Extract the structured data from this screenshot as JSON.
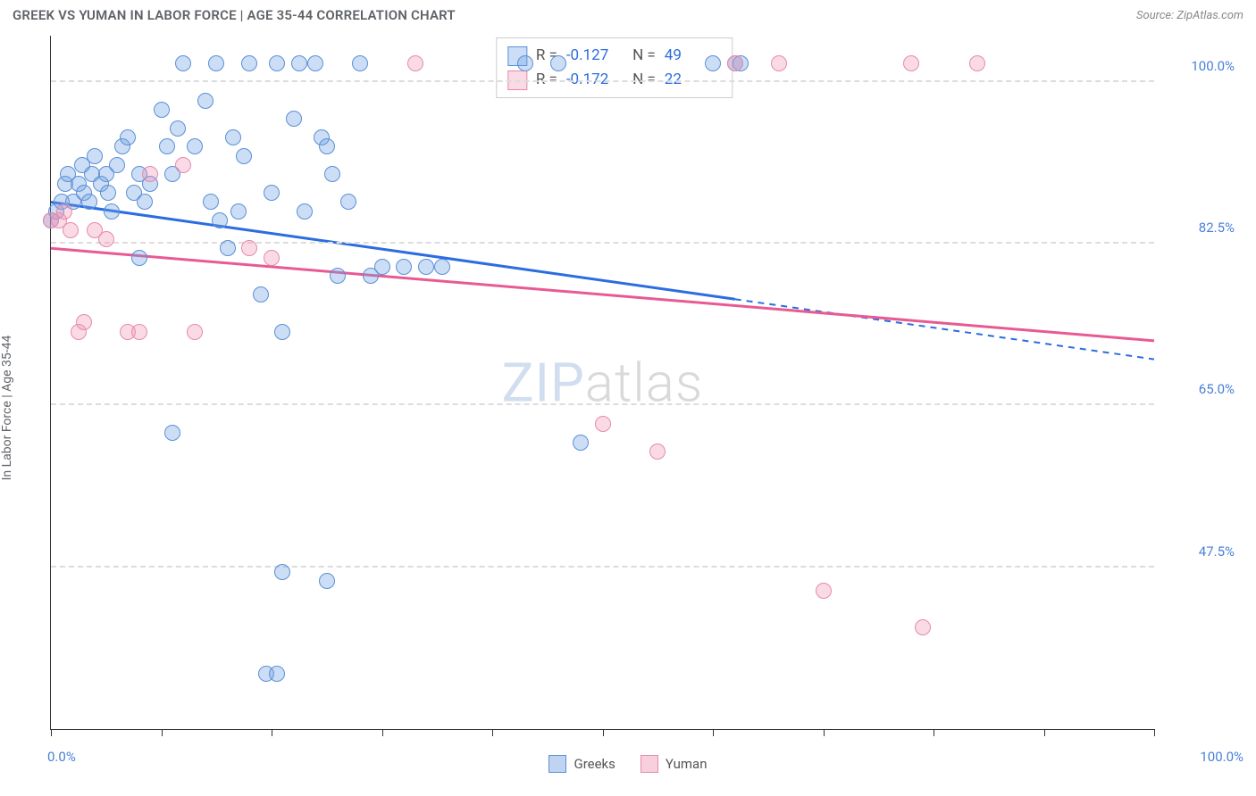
{
  "header": {
    "title": "GREEK VS YUMAN IN LABOR FORCE | AGE 35-44 CORRELATION CHART",
    "source": "Source: ZipAtlas.com"
  },
  "chart": {
    "type": "scatter",
    "ylabel": "In Labor Force | Age 35-44",
    "xlim": [
      0,
      100
    ],
    "ylim": [
      30,
      105
    ],
    "xticks": [
      0,
      10,
      20,
      30,
      40,
      50,
      60,
      70,
      80,
      90,
      100
    ],
    "yticks": [
      47.5,
      65.0,
      82.5,
      100.0
    ],
    "ytick_labels": [
      "47.5%",
      "65.0%",
      "82.5%",
      "100.0%"
    ],
    "xlabel_min": "0.0%",
    "xlabel_max": "100.0%",
    "background_color": "#ffffff",
    "grid_color": "#dcdcdc",
    "point_radius": 9,
    "point_border_width": 1.5,
    "watermark": {
      "zip": "ZIP",
      "atlas": "atlas"
    },
    "series": [
      {
        "name": "Greeks",
        "fill": "rgba(110,160,225,0.35)",
        "stroke": "#5b8fd6",
        "line_color": "#2b6de0",
        "r": -0.127,
        "n": 49,
        "trend": {
          "x1": 0,
          "y1": 87,
          "x2": 62,
          "y2": 76.5,
          "x_dash_to": 100,
          "y_dash_to": 70
        },
        "points": [
          [
            0,
            85
          ],
          [
            0.5,
            86
          ],
          [
            1,
            87
          ],
          [
            1.3,
            89
          ],
          [
            1.5,
            90
          ],
          [
            2,
            87
          ],
          [
            2.5,
            89
          ],
          [
            2.8,
            91
          ],
          [
            3,
            88
          ],
          [
            3.5,
            87
          ],
          [
            3.7,
            90
          ],
          [
            4,
            92
          ],
          [
            4.5,
            89
          ],
          [
            5,
            90
          ],
          [
            5.2,
            88
          ],
          [
            5.5,
            86
          ],
          [
            6,
            91
          ],
          [
            6.5,
            93
          ],
          [
            7,
            94
          ],
          [
            7.5,
            88
          ],
          [
            8,
            90
          ],
          [
            8.5,
            87
          ],
          [
            9,
            89
          ],
          [
            10,
            97
          ],
          [
            10.5,
            93
          ],
          [
            11,
            90
          ],
          [
            11.5,
            95
          ],
          [
            12,
            102
          ],
          [
            13,
            93
          ],
          [
            14,
            98
          ],
          [
            14.5,
            87
          ],
          [
            15,
            102
          ],
          [
            15.3,
            85
          ],
          [
            16,
            82
          ],
          [
            16.5,
            94
          ],
          [
            17,
            86
          ],
          [
            17.5,
            92
          ],
          [
            18,
            102
          ],
          [
            19,
            77
          ],
          [
            20,
            88
          ],
          [
            20.5,
            102
          ],
          [
            21,
            73
          ],
          [
            22,
            96
          ],
          [
            22.5,
            102
          ],
          [
            23,
            86
          ],
          [
            24,
            102
          ],
          [
            24.5,
            94
          ],
          [
            25,
            93
          ],
          [
            25.5,
            90
          ],
          [
            26,
            79
          ],
          [
            27,
            87
          ],
          [
            28,
            102
          ],
          [
            8,
            81
          ],
          [
            11,
            62
          ],
          [
            19.5,
            36
          ],
          [
            20.5,
            36
          ],
          [
            21,
            47
          ],
          [
            25,
            46
          ],
          [
            29,
            79
          ],
          [
            30,
            80
          ],
          [
            32,
            80
          ],
          [
            34,
            80
          ],
          [
            35.5,
            80
          ],
          [
            43,
            102
          ],
          [
            46,
            102
          ],
          [
            48,
            61
          ],
          [
            60,
            102
          ],
          [
            62,
            102
          ],
          [
            62.5,
            102
          ]
        ]
      },
      {
        "name": "Yuman",
        "fill": "rgba(240,150,180,0.35)",
        "stroke": "#e68aac",
        "line_color": "#e75a92",
        "r": -0.172,
        "n": 22,
        "trend": {
          "x1": 0,
          "y1": 82,
          "x2": 100,
          "y2": 72,
          "x_dash_to": 100,
          "y_dash_to": 72
        },
        "points": [
          [
            0,
            85
          ],
          [
            0.7,
            85
          ],
          [
            1.2,
            86
          ],
          [
            1.8,
            84
          ],
          [
            2.5,
            73
          ],
          [
            3,
            74
          ],
          [
            4,
            84
          ],
          [
            5,
            83
          ],
          [
            7,
            73
          ],
          [
            8,
            73
          ],
          [
            9,
            90
          ],
          [
            12,
            91
          ],
          [
            18,
            82
          ],
          [
            13,
            73
          ],
          [
            20,
            81
          ],
          [
            33,
            102
          ],
          [
            50,
            63
          ],
          [
            55,
            60
          ],
          [
            62,
            102
          ],
          [
            66,
            102
          ],
          [
            70,
            45
          ],
          [
            78,
            102
          ],
          [
            79,
            41
          ],
          [
            84,
            102
          ]
        ]
      }
    ],
    "legend": {
      "items": [
        {
          "label": "Greeks",
          "fill": "rgba(110,160,225,0.45)",
          "stroke": "#5b8fd6"
        },
        {
          "label": "Yuman",
          "fill": "rgba(240,150,180,0.45)",
          "stroke": "#e68aac"
        }
      ]
    }
  }
}
